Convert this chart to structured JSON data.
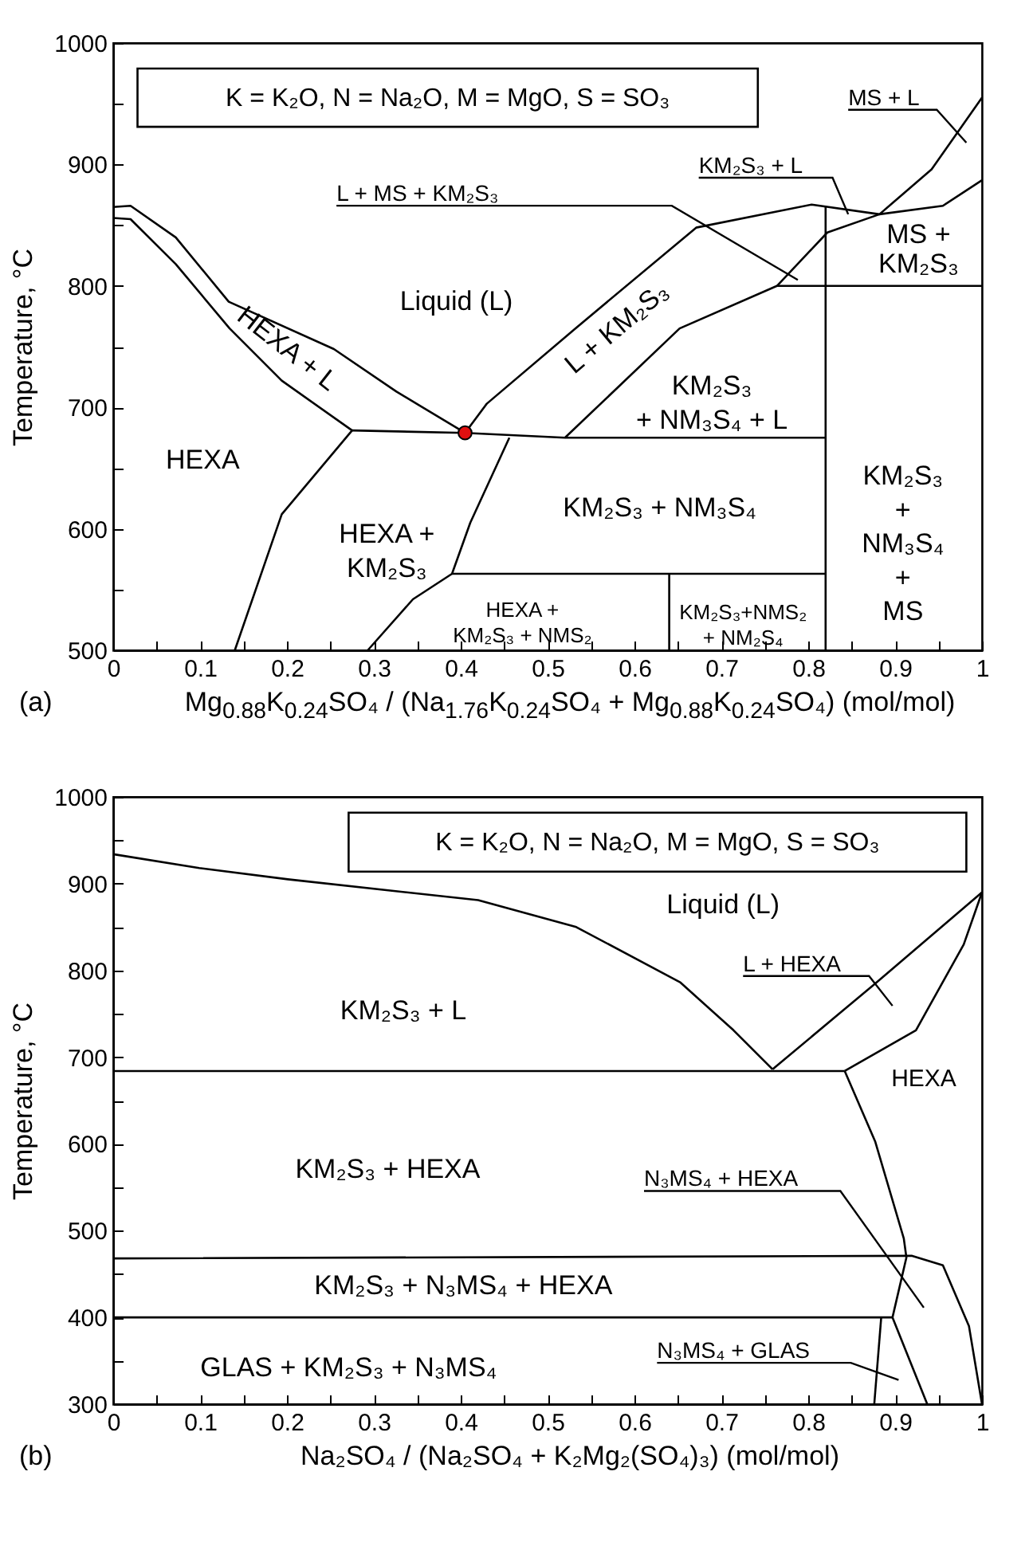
{
  "chart_data": [
    {
      "type": "line",
      "ylabel": "Temperature, °C",
      "xlabel": "Mg$_{0.88}$K$_{0.24}$SO₄ / (Na$_{1.76}$K$_{0.24}$SO₄ + Mg$_{0.88}$K$_{0.24}$SO₄) (mol/mol)",
      "xlim": [
        0,
        1
      ],
      "ylim": [
        500,
        1000
      ],
      "xticks": [
        0,
        {
          "value": 0.05,
          "label": null
        },
        0.1,
        {
          "value": 0.15,
          "label": null
        },
        0.2,
        {
          "value": 0.25,
          "label": null
        },
        0.3,
        {
          "value": 0.35,
          "label": null
        },
        0.4,
        {
          "value": 0.45,
          "label": null
        },
        0.5,
        {
          "value": 0.55,
          "label": null
        },
        0.6,
        {
          "value": 0.65,
          "label": null
        },
        0.7,
        {
          "value": 0.75,
          "label": null
        },
        0.8,
        {
          "value": 0.85,
          "label": null
        },
        0.9,
        {
          "value": 0.95,
          "label": null
        },
        1
      ],
      "yticks": [
        500,
        {
          "value": 550,
          "label": null
        },
        600,
        {
          "value": 650,
          "label": null
        },
        700,
        {
          "value": 750,
          "label": null
        },
        800,
        {
          "value": 850,
          "label": null
        },
        900,
        {
          "value": 950,
          "label": null
        },
        1000
      ],
      "series": [
        {
          "color": "#000000",
          "x": [
            0,
            0.02,
            0.072,
            0.133,
            0.254,
            0.326,
            0.405
          ],
          "values": [
            865,
            866,
            840,
            787,
            748,
            713,
            679
          ]
        },
        {
          "color": "#000000",
          "x": [
            0,
            0.02,
            0.072,
            0.134,
            0.194,
            0.275
          ],
          "values": [
            856,
            855,
            818,
            765,
            722,
            681
          ]
        },
        {
          "color": "#000000",
          "x": [
            0.275,
            0.405,
            0.52,
            0.82
          ],
          "values": [
            681,
            679,
            675,
            675
          ]
        },
        {
          "color": "#000000",
          "x": [
            0.405,
            0.43,
            0.532,
            0.671,
            0.804,
            0.882,
            0.942,
            1
          ],
          "values": [
            679,
            703,
            765,
            848,
            867,
            859,
            896,
            955
          ]
        },
        {
          "color": "#000000",
          "x": [
            0.52,
            0.652,
            0.764,
            0.822,
            0.882,
            0.955,
            1
          ],
          "values": [
            675,
            765,
            800,
            844,
            859,
            866,
            887
          ]
        },
        {
          "color": "#000000",
          "x": [
            0.82,
            0.82
          ],
          "values": [
            866,
            500
          ]
        },
        {
          "color": "#000000",
          "x": [
            0.764,
            1
          ],
          "values": [
            800,
            800
          ]
        },
        {
          "color": "#000000",
          "x": [
            0.275,
            0.194,
            0.14
          ],
          "values": [
            681,
            612,
            500
          ]
        },
        {
          "color": "#000000",
          "x": [
            0.456,
            0.411,
            0.39,
            0.345,
            0.293
          ],
          "values": [
            675,
            605,
            563,
            542,
            500
          ]
        },
        {
          "color": "#000000",
          "x": [
            0.39,
            0.82
          ],
          "values": [
            563,
            563
          ]
        },
        {
          "color": "#000000",
          "x": [
            0.64,
            0.64
          ],
          "values": [
            563,
            500
          ]
        },
        {
          "type": "scatter",
          "marker": "circle",
          "color": "#e01010",
          "x": [
            0.405
          ],
          "values": [
            679
          ]
        }
      ],
      "annotations": [
        "(a)",
        "K = K₂O, N = Na₂O, M = MgO, S = SO₃",
        "HEXA + L",
        "Liquid (L)",
        "L + KM₂S₃",
        "HEXA",
        "HEXA +\nKM₂S₃",
        "KM₂S₃\n+ NM₃S₄ + L",
        "KM₂S₃ + NM₃S₄",
        "KM₂S₃\n+\nNM₃S₄\n+\nMS",
        "MS +\nKM₂S₃",
        "HEXA +\nKM₂S₃ + NMS₂",
        "KM₂S₃+NMS₂\n+ NM₂S₄",
        {
          "text": "L + MS + KM₂S₃",
          "x": 0.788,
          "y": 805
        },
        {
          "text": "KM₂S₃ + L",
          "x": 0.846,
          "y": 859
        },
        "MS + L"
      ]
    },
    {
      "type": "line",
      "ylabel": "Temperature, °C",
      "xlabel": "Na₂SO₄ / (Na₂SO₄ + K₂Mg₂(SO₄)₃) (mol/mol)",
      "xlim": [
        0,
        1
      ],
      "ylim": [
        300,
        1000
      ],
      "xticks": [
        0,
        {
          "value": 0.05,
          "label": null
        },
        0.1,
        {
          "value": 0.15,
          "label": null
        },
        0.2,
        {
          "value": 0.25,
          "label": null
        },
        0.3,
        {
          "value": 0.35,
          "label": null
        },
        0.4,
        {
          "value": 0.45,
          "label": null
        },
        0.5,
        {
          "value": 0.55,
          "label": null
        },
        0.6,
        {
          "value": 0.65,
          "label": null
        },
        0.7,
        {
          "value": 0.75,
          "label": null
        },
        0.8,
        {
          "value": 0.85,
          "label": null
        },
        0.9,
        {
          "value": 0.95,
          "label": null
        },
        1
      ],
      "yticks": [
        300,
        {
          "value": 350,
          "label": null
        },
        400,
        {
          "value": 450,
          "label": null
        },
        500,
        {
          "value": 550,
          "label": null
        },
        600,
        {
          "value": 650,
          "label": null
        },
        700,
        {
          "value": 750,
          "label": null
        },
        800,
        {
          "value": 850,
          "label": null
        },
        900,
        {
          "value": 950,
          "label": null
        },
        1000
      ],
      "series": [
        {
          "color": "#000000",
          "x": [
            0,
            0.099,
            0.201,
            0.42,
            0.533,
            0.653,
            0.714,
            0.759
          ],
          "values": [
            934,
            918,
            905,
            881,
            850,
            786,
            731,
            686
          ]
        },
        {
          "color": "#000000",
          "x": [
            0.759,
            0.876,
            1
          ],
          "values": [
            686,
            784,
            890
          ]
        },
        {
          "color": "#000000",
          "x": [
            0.842,
            0.924,
            0.979,
            1
          ],
          "values": [
            684,
            731,
            830,
            890
          ]
        },
        {
          "color": "#000000",
          "x": [
            0,
            0.842
          ],
          "values": [
            684,
            684
          ]
        },
        {
          "color": "#000000",
          "x": [
            0.842,
            0.877,
            0.91,
            0.913,
            0.897,
            0.937
          ],
          "values": [
            684,
            603,
            491,
            469,
            400,
            300
          ]
        },
        {
          "color": "#000000",
          "x": [
            0,
            0.919,
            0.955,
            0.985,
            1
          ],
          "values": [
            468,
            471,
            460,
            390,
            300
          ]
        },
        {
          "color": "#000000",
          "x": [
            0,
            0.897
          ],
          "values": [
            400,
            400
          ]
        },
        {
          "color": "#000000",
          "x": [
            0.884,
            0.876
          ],
          "values": [
            400,
            300
          ]
        }
      ],
      "annotations": [
        "(b)",
        "K = K₂O, N = Na₂O, M = MgO, S = SO₃",
        "Liquid (L)",
        "KM₂S₃  + L",
        "KM₂S₃  + HEXA",
        "KM₂S₃  + N₃MS₄ + HEXA",
        "GLAS + KM₂S₃  + N₃MS₄",
        "HEXA",
        "L + HEXA",
        "N₃MS₄ + HEXA",
        "N₃MS₄ + GLAS"
      ]
    }
  ]
}
